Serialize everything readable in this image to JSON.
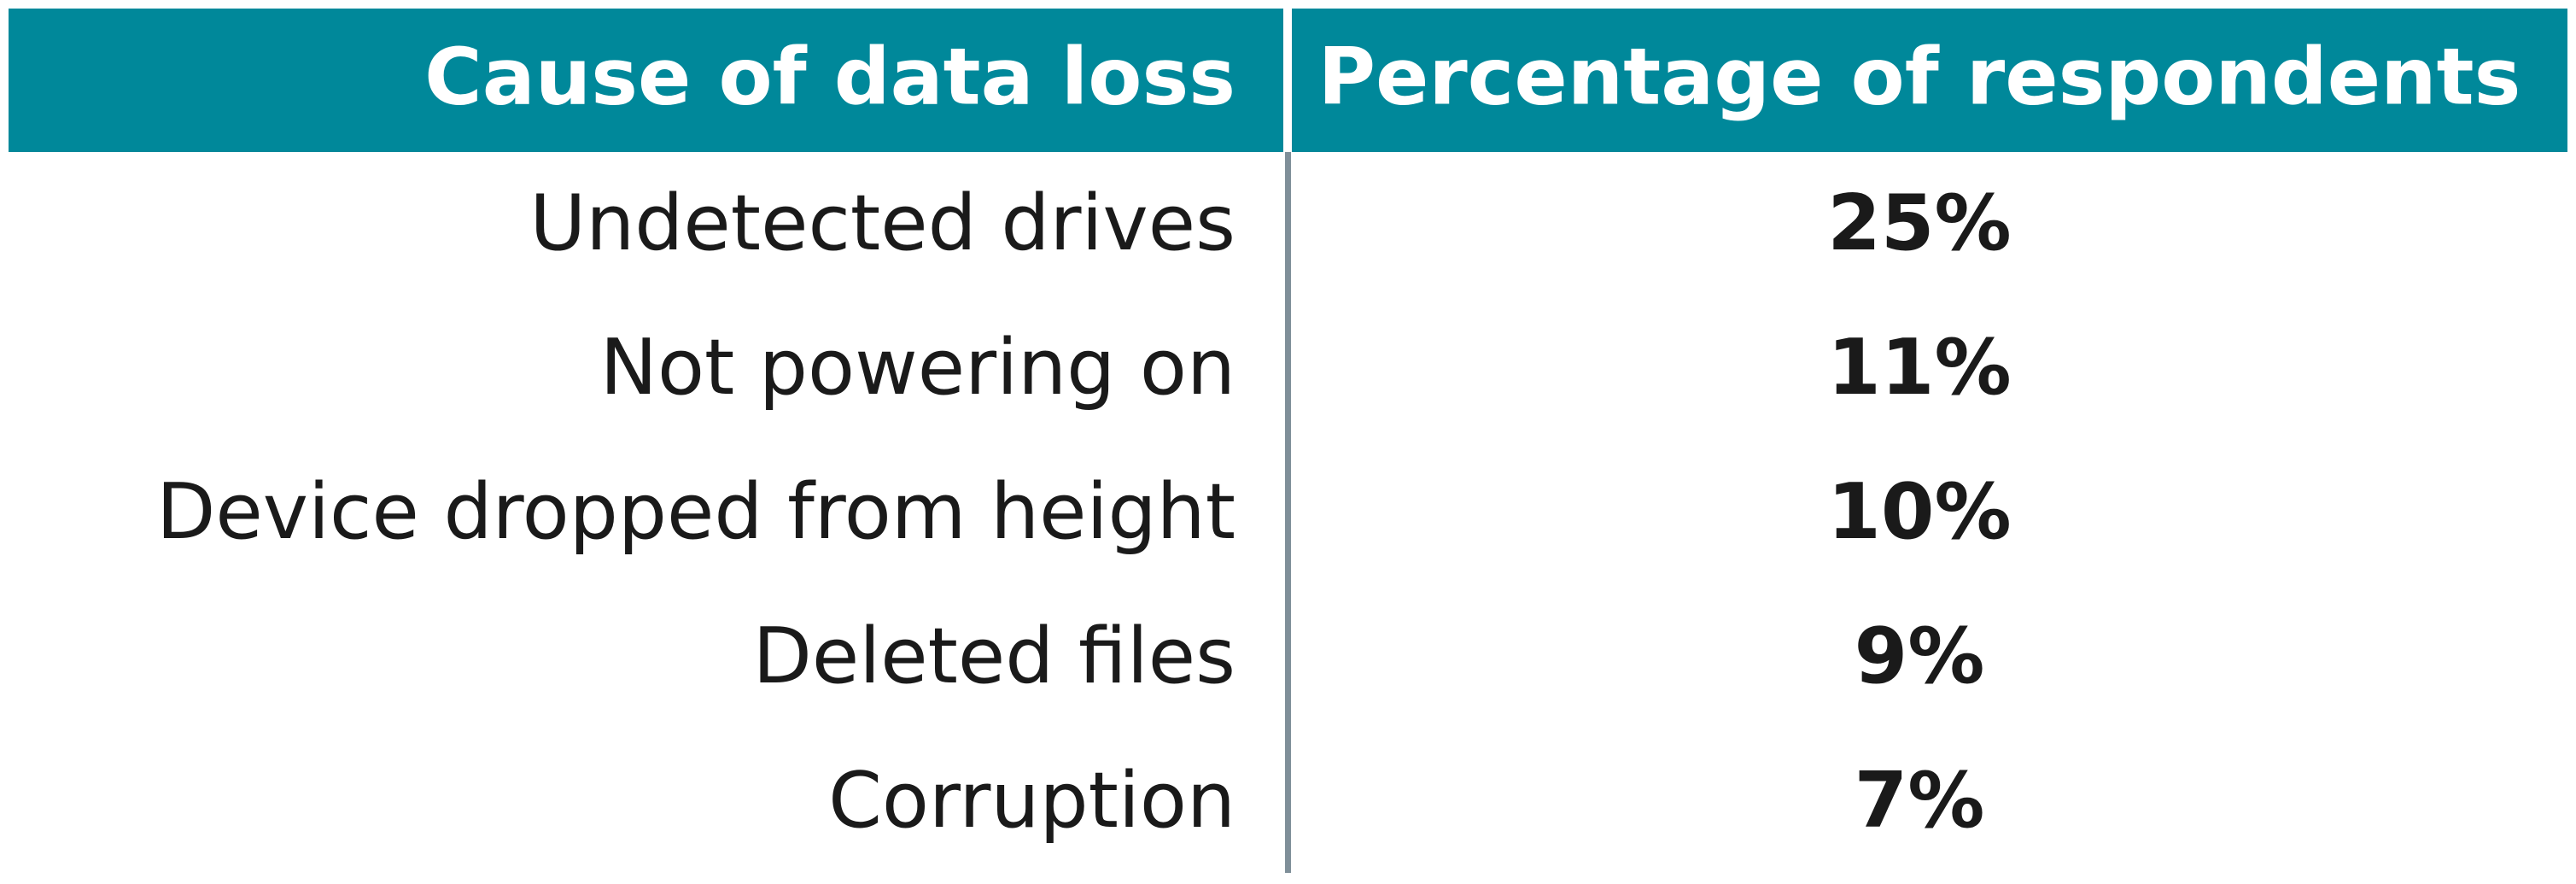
{
  "table": {
    "header": [
      "Cause of data loss",
      "Percentage of respondents"
    ],
    "rows": [
      [
        "Undetected drives",
        "25%"
      ],
      [
        "Not powering on",
        "11%"
      ],
      [
        "Device dropped from height",
        "10%"
      ],
      [
        "Deleted files",
        "9%"
      ],
      [
        "Corruption",
        "7%"
      ]
    ]
  }
}
